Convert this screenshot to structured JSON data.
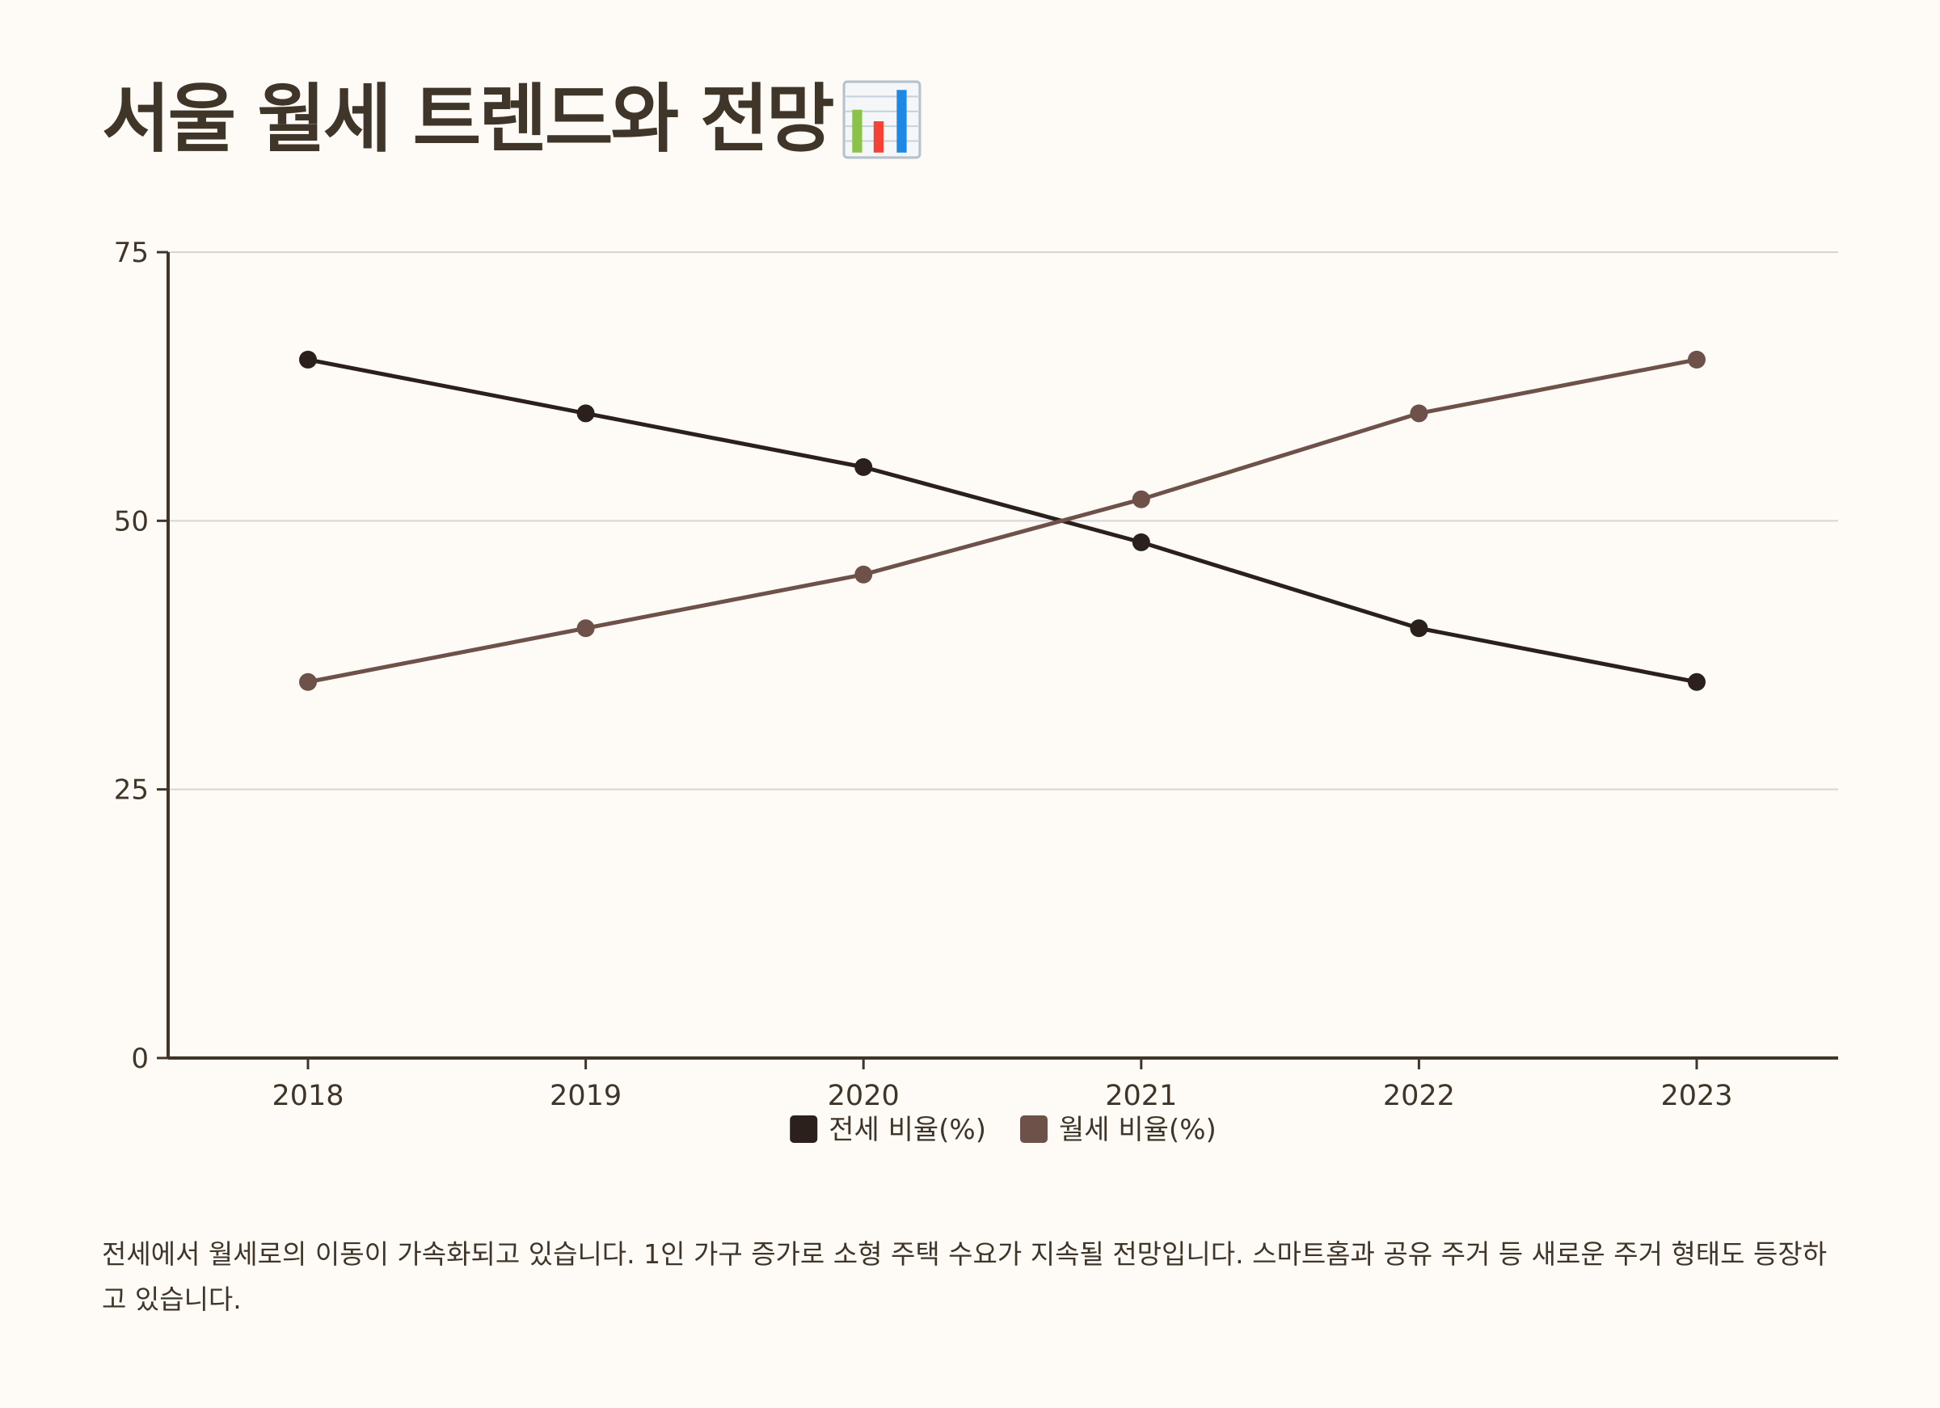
{
  "page": {
    "title": "서울 월세 트렌드와 전망",
    "title_icon": "bar-chart-emoji-icon",
    "description": "전세에서 월세로의 이동이 가속화되고 있습니다. 1인 가구 증가로 소형 주택 수요가 지속될 전망입니다. 스마트홈과 공유 주거 등 새로운 주거 형태도 등장하고 있습니다."
  },
  "colors": {
    "background": "#fefbf7",
    "text": "#3f3528",
    "axis": "#3f3528",
    "grid": "#d5d5d5",
    "series_jeonse": "#2b201b",
    "series_wolse": "#6e5148"
  },
  "chart_data": {
    "type": "line",
    "title": "",
    "xlabel": "",
    "ylabel": "",
    "categories": [
      "2018",
      "2019",
      "2020",
      "2021",
      "2022",
      "2023"
    ],
    "series": [
      {
        "name": "전세 비율(%)",
        "color": "#2b201b",
        "values": [
          65,
          60,
          55,
          48,
          40,
          35
        ]
      },
      {
        "name": "월세 비율(%)",
        "color": "#6e5148",
        "values": [
          35,
          40,
          45,
          52,
          60,
          65
        ]
      }
    ],
    "ylim": [
      0,
      75
    ],
    "yticks": [
      0,
      25,
      50,
      75
    ],
    "grid": true,
    "legend_position": "bottom-center"
  }
}
